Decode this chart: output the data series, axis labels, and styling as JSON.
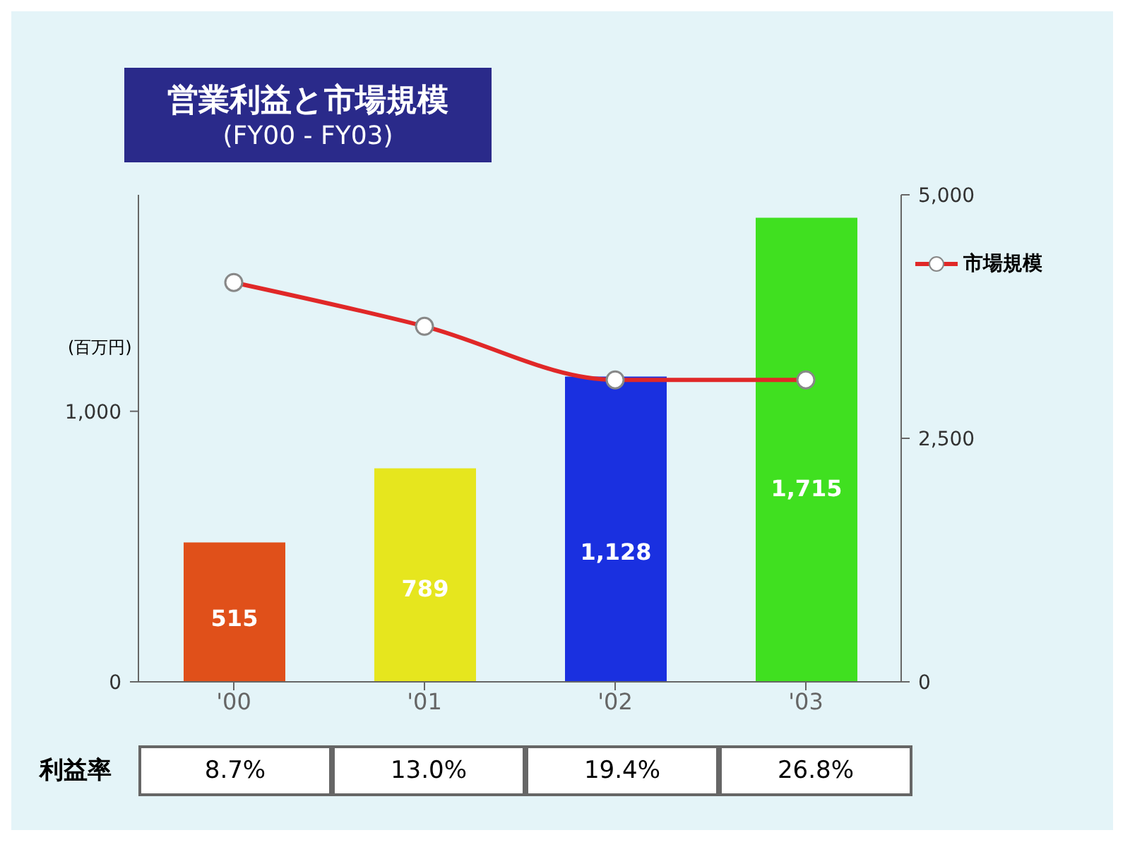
{
  "chart_data": {
    "type": "bar",
    "title": "営業利益と市場規模",
    "subtitle": "(FY00 - FY03)",
    "ylabel": "(百万円)",
    "categories": [
      "'00",
      "'01",
      "'02",
      "'03"
    ],
    "series": [
      {
        "colors": [
          "#e0501a",
          "#e6e61e",
          "#1a30e0",
          "#40e020"
        ],
        "values": [
          515,
          789,
          1128,
          1715
        ],
        "value_labels": [
          "515",
          "789",
          "1,128",
          "1,715"
        ]
      },
      {
        "type": "line",
        "name": "市場規模",
        "color": "#e02828",
        "axis": "y2",
        "values": [
          4100,
          3650,
          3100,
          3100
        ],
        "marker": "circle"
      }
    ],
    "ylim": [
      0,
      1800
    ],
    "yticks": [
      0,
      {
        "value": 1000,
        "label": "1,000"
      }
    ],
    "y2lim": [
      0,
      5000
    ],
    "y2ticks": [
      0,
      {
        "value": 2500,
        "label": "2,500"
      },
      {
        "value": 5000,
        "label": "5,000"
      }
    ],
    "legend": "top right",
    "grid": false,
    "annotations": [
      "利益率",
      "8.7%",
      "13.0%",
      "19.4%",
      "26.8%"
    ]
  }
}
